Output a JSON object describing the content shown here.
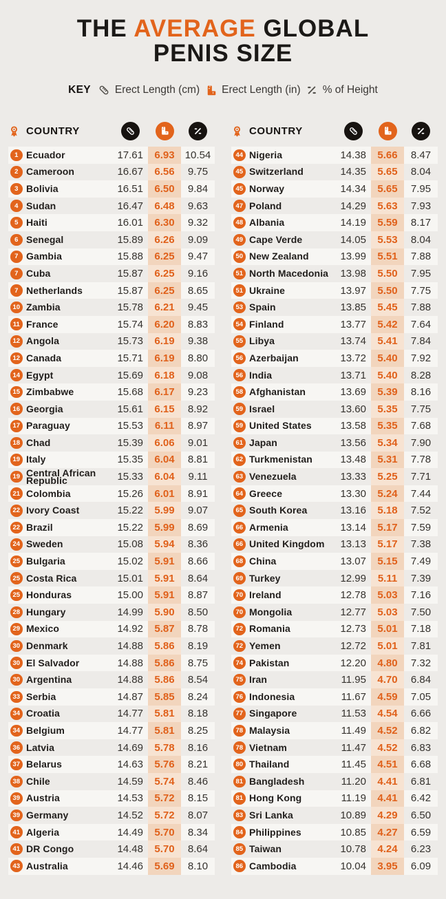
{
  "title": {
    "line1_pre": "THE ",
    "line1_highlight": "AVERAGE",
    "line1_post": " GLOBAL",
    "line2": "PENIS SIZE"
  },
  "key": {
    "label": "KEY",
    "items": [
      {
        "icon": "ruler-diagonal-icon",
        "label": "Erect Length (cm)"
      },
      {
        "icon": "ruler-square-icon",
        "label": "Erect Length (in)"
      },
      {
        "icon": "percent-icon",
        "label": "% of Height"
      }
    ]
  },
  "table_header": {
    "country_label": "COUNTRY",
    "rank_icon": "medal-icon",
    "cm_icon": "ruler-diagonal-icon",
    "in_icon": "ruler-square-icon",
    "pct_icon": "percent-icon"
  },
  "colors": {
    "page_bg": "#edebe8",
    "ink": "#1b1917",
    "accent": "#e2641c",
    "accent_num": "#e0611b",
    "circle_black": "#171310",
    "row_alt": "#f7f6f3",
    "peach_dark": "#f2d5bd",
    "peach_light": "#f7e3d2"
  },
  "chart_data": {
    "type": "table",
    "title": "THE AVERAGE GLOBAL PENIS SIZE",
    "columns": [
      "Rank",
      "Country",
      "Erect Length (cm)",
      "Erect Length (in)",
      "% of Height"
    ],
    "left_rows": [
      [
        1,
        "Ecuador",
        "17.61",
        "6.93",
        "10.54"
      ],
      [
        2,
        "Cameroon",
        "16.67",
        "6.56",
        "9.75"
      ],
      [
        3,
        "Bolivia",
        "16.51",
        "6.50",
        "9.84"
      ],
      [
        4,
        "Sudan",
        "16.47",
        "6.48",
        "9.63"
      ],
      [
        5,
        "Haiti",
        "16.01",
        "6.30",
        "9.32"
      ],
      [
        6,
        "Senegal",
        "15.89",
        "6.26",
        "9.09"
      ],
      [
        7,
        "Gambia",
        "15.88",
        "6.25",
        "9.47"
      ],
      [
        7,
        "Cuba",
        "15.87",
        "6.25",
        "9.16"
      ],
      [
        7,
        "Netherlands",
        "15.87",
        "6.25",
        "8.65"
      ],
      [
        10,
        "Zambia",
        "15.78",
        "6.21",
        "9.45"
      ],
      [
        11,
        "France",
        "15.74",
        "6.20",
        "8.83"
      ],
      [
        12,
        "Angola",
        "15.73",
        "6.19",
        "9.38"
      ],
      [
        12,
        "Canada",
        "15.71",
        "6.19",
        "8.80"
      ],
      [
        14,
        "Egypt",
        "15.69",
        "6.18",
        "9.08"
      ],
      [
        15,
        "Zimbabwe",
        "15.68",
        "6.17",
        "9.23"
      ],
      [
        16,
        "Georgia",
        "15.61",
        "6.15",
        "8.92"
      ],
      [
        17,
        "Paraguay",
        "15.53",
        "6.11",
        "8.97"
      ],
      [
        18,
        "Chad",
        "15.39",
        "6.06",
        "9.01"
      ],
      [
        19,
        "Italy",
        "15.35",
        "6.04",
        "8.81"
      ],
      [
        19,
        "Central African Republic",
        "15.33",
        "6.04",
        "9.11"
      ],
      [
        21,
        "Colombia",
        "15.26",
        "6.01",
        "8.91"
      ],
      [
        22,
        "Ivory Coast",
        "15.22",
        "5.99",
        "9.07"
      ],
      [
        22,
        "Brazil",
        "15.22",
        "5.99",
        "8.69"
      ],
      [
        24,
        "Sweden",
        "15.08",
        "5.94",
        "8.36"
      ],
      [
        25,
        "Bulgaria",
        "15.02",
        "5.91",
        "8.66"
      ],
      [
        25,
        "Costa Rica",
        "15.01",
        "5.91",
        "8.64"
      ],
      [
        25,
        "Honduras",
        "15.00",
        "5.91",
        "8.87"
      ],
      [
        28,
        "Hungary",
        "14.99",
        "5.90",
        "8.50"
      ],
      [
        29,
        "Mexico",
        "14.92",
        "5.87",
        "8.78"
      ],
      [
        30,
        "Denmark",
        "14.88",
        "5.86",
        "8.19"
      ],
      [
        30,
        "El Salvador",
        "14.88",
        "5.86",
        "8.75"
      ],
      [
        30,
        "Argentina",
        "14.88",
        "5.86",
        "8.54"
      ],
      [
        33,
        "Serbia",
        "14.87",
        "5.85",
        "8.24"
      ],
      [
        34,
        "Croatia",
        "14.77",
        "5.81",
        "8.18"
      ],
      [
        34,
        "Belgium",
        "14.77",
        "5.81",
        "8.25"
      ],
      [
        36,
        "Latvia",
        "14.69",
        "5.78",
        "8.16"
      ],
      [
        37,
        "Belarus",
        "14.63",
        "5.76",
        "8.21"
      ],
      [
        38,
        "Chile",
        "14.59",
        "5.74",
        "8.46"
      ],
      [
        39,
        "Austria",
        "14.53",
        "5.72",
        "8.15"
      ],
      [
        39,
        "Germany",
        "14.52",
        "5.72",
        "8.07"
      ],
      [
        41,
        "Algeria",
        "14.49",
        "5.70",
        "8.34"
      ],
      [
        41,
        "DR Congo",
        "14.48",
        "5.70",
        "8.64"
      ],
      [
        43,
        "Australia",
        "14.46",
        "5.69",
        "8.10"
      ]
    ],
    "right_rows": [
      [
        44,
        "Nigeria",
        "14.38",
        "5.66",
        "8.47"
      ],
      [
        45,
        "Switzerland",
        "14.35",
        "5.65",
        "8.04"
      ],
      [
        45,
        "Norway",
        "14.34",
        "5.65",
        "7.95"
      ],
      [
        47,
        "Poland",
        "14.29",
        "5.63",
        "7.93"
      ],
      [
        48,
        "Albania",
        "14.19",
        "5.59",
        "8.17"
      ],
      [
        49,
        "Cape Verde",
        "14.05",
        "5.53",
        "8.04"
      ],
      [
        50,
        "New Zealand",
        "13.99",
        "5.51",
        "7.88"
      ],
      [
        51,
        "North Macedonia",
        "13.98",
        "5.50",
        "7.95"
      ],
      [
        51,
        "Ukraine",
        "13.97",
        "5.50",
        "7.75"
      ],
      [
        53,
        "Spain",
        "13.85",
        "5.45",
        "7.88"
      ],
      [
        54,
        "Finland",
        "13.77",
        "5.42",
        "7.64"
      ],
      [
        55,
        "Libya",
        "13.74",
        "5.41",
        "7.84"
      ],
      [
        56,
        "Azerbaijan",
        "13.72",
        "5.40",
        "7.92"
      ],
      [
        56,
        "India",
        "13.71",
        "5.40",
        "8.28"
      ],
      [
        58,
        "Afghanistan",
        "13.69",
        "5.39",
        "8.16"
      ],
      [
        59,
        "Israel",
        "13.60",
        "5.35",
        "7.75"
      ],
      [
        59,
        "United States",
        "13.58",
        "5.35",
        "7.68"
      ],
      [
        61,
        "Japan",
        "13.56",
        "5.34",
        "7.90"
      ],
      [
        62,
        "Turkmenistan",
        "13.48",
        "5.31",
        "7.78"
      ],
      [
        63,
        "Venezuela",
        "13.33",
        "5.25",
        "7.71"
      ],
      [
        64,
        "Greece",
        "13.30",
        "5.24",
        "7.44"
      ],
      [
        65,
        "South Korea",
        "13.16",
        "5.18",
        "7.52"
      ],
      [
        66,
        "Armenia",
        "13.14",
        "5.17",
        "7.59"
      ],
      [
        66,
        "United Kingdom",
        "13.13",
        "5.17",
        "7.38"
      ],
      [
        68,
        "China",
        "13.07",
        "5.15",
        "7.49"
      ],
      [
        69,
        "Turkey",
        "12.99",
        "5.11",
        "7.39"
      ],
      [
        70,
        "Ireland",
        "12.78",
        "5.03",
        "7.16"
      ],
      [
        70,
        "Mongolia",
        "12.77",
        "5.03",
        "7.50"
      ],
      [
        72,
        "Romania",
        "12.73",
        "5.01",
        "7.18"
      ],
      [
        72,
        "Yemen",
        "12.72",
        "5.01",
        "7.81"
      ],
      [
        74,
        "Pakistan",
        "12.20",
        "4.80",
        "7.32"
      ],
      [
        75,
        "Iran",
        "11.95",
        "4.70",
        "6.84"
      ],
      [
        76,
        "Indonesia",
        "11.67",
        "4.59",
        "7.05"
      ],
      [
        77,
        "Singapore",
        "11.53",
        "4.54",
        "6.66"
      ],
      [
        78,
        "Malaysia",
        "11.49",
        "4.52",
        "6.82"
      ],
      [
        78,
        "Vietnam",
        "11.47",
        "4.52",
        "6.83"
      ],
      [
        80,
        "Thailand",
        "11.45",
        "4.51",
        "6.68"
      ],
      [
        81,
        "Bangladesh",
        "11.20",
        "4.41",
        "6.81"
      ],
      [
        81,
        "Hong Kong",
        "11.19",
        "4.41",
        "6.42"
      ],
      [
        83,
        "Sri Lanka",
        "10.89",
        "4.29",
        "6.50"
      ],
      [
        84,
        "Philippines",
        "10.85",
        "4.27",
        "6.59"
      ],
      [
        85,
        "Taiwan",
        "10.78",
        "4.24",
        "6.23"
      ],
      [
        86,
        "Cambodia",
        "10.04",
        "3.95",
        "6.09"
      ]
    ]
  }
}
